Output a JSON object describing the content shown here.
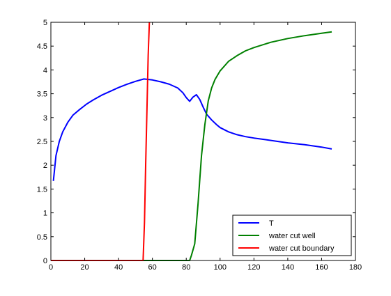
{
  "chart_data": {
    "type": "line",
    "title": "",
    "xlabel": "",
    "ylabel": "",
    "xlim": [
      0,
      180
    ],
    "ylim": [
      0,
      5
    ],
    "xticks": [
      "0",
      "20",
      "40",
      "60",
      "80",
      "100",
      "120",
      "140",
      "160",
      "180"
    ],
    "yticks": [
      "0",
      "0.5",
      "1",
      "1.5",
      "2",
      "2.5",
      "3",
      "3.5",
      "4",
      "4.5",
      "5"
    ],
    "grid": false,
    "legend_position": "bottom-right",
    "series": [
      {
        "name": "T",
        "color": "#0000ff",
        "x": [
          1.5,
          3,
          5,
          7,
          10,
          13,
          17,
          21,
          25,
          30,
          35,
          40,
          45,
          50,
          55,
          60,
          65,
          70,
          75,
          78,
          80,
          82,
          84,
          86,
          88,
          90,
          92,
          95,
          98,
          100,
          105,
          110,
          115,
          120,
          130,
          140,
          150,
          160,
          166
        ],
        "values": [
          1.67,
          2.2,
          2.5,
          2.7,
          2.9,
          3.05,
          3.17,
          3.28,
          3.37,
          3.47,
          3.55,
          3.63,
          3.7,
          3.76,
          3.81,
          3.79,
          3.75,
          3.7,
          3.62,
          3.52,
          3.42,
          3.34,
          3.43,
          3.48,
          3.38,
          3.22,
          3.07,
          2.95,
          2.85,
          2.79,
          2.7,
          2.64,
          2.6,
          2.57,
          2.52,
          2.47,
          2.43,
          2.38,
          2.34
        ]
      },
      {
        "name": "water cut well",
        "color": "#008000",
        "x": [
          0,
          82,
          83,
          85,
          87,
          89,
          91,
          93,
          95,
          97,
          100,
          105,
          110,
          115,
          120,
          130,
          140,
          150,
          160,
          166
        ],
        "values": [
          0,
          0,
          0.1,
          0.35,
          1.2,
          2.2,
          2.85,
          3.35,
          3.62,
          3.8,
          3.98,
          4.18,
          4.3,
          4.4,
          4.47,
          4.58,
          4.66,
          4.72,
          4.77,
          4.8
        ]
      },
      {
        "name": "water cut boundary",
        "color": "#ff0000",
        "x": [
          0,
          54.5,
          55.3,
          56,
          56.8,
          57.5,
          58.2
        ],
        "values": [
          0,
          0,
          0.8,
          2.0,
          3.2,
          4.3,
          5.0
        ]
      }
    ]
  }
}
